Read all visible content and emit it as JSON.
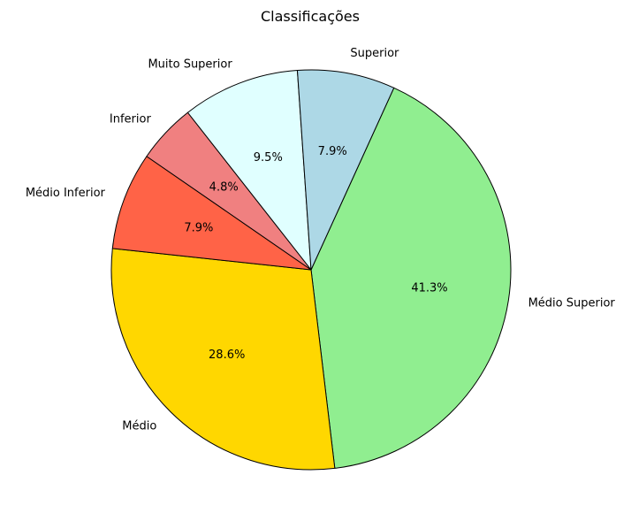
{
  "chart_data": {
    "type": "pie",
    "title": "Classificações",
    "start_angle_deg": -65.5,
    "direction": "clockwise",
    "edge_color": "#000000",
    "slices": [
      {
        "label": "Médio Superior",
        "value": 41.3,
        "pct_text": "41.3%",
        "color": "#90ee90"
      },
      {
        "label": "Médio",
        "value": 28.6,
        "pct_text": "28.6%",
        "color": "#ffd700"
      },
      {
        "label": "Médio Inferior",
        "value": 7.9,
        "pct_text": "7.9%",
        "color": "#ff6347"
      },
      {
        "label": "Inferior",
        "value": 4.8,
        "pct_text": "4.8%",
        "color": "#f08080"
      },
      {
        "label": "Muito Superior",
        "value": 9.5,
        "pct_text": "9.5%",
        "color": "#e0ffff"
      },
      {
        "label": "Superior",
        "value": 7.9,
        "pct_text": "7.9%",
        "color": "#add8e6"
      }
    ]
  }
}
